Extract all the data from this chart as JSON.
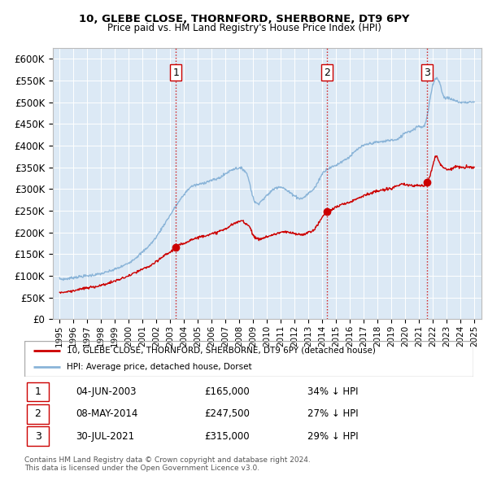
{
  "title1": "10, GLEBE CLOSE, THORNFORD, SHERBORNE, DT9 6PY",
  "title2": "Price paid vs. HM Land Registry's House Price Index (HPI)",
  "bg_color": "#dce9f5",
  "hpi_color": "#8ab4d8",
  "price_color": "#cc0000",
  "transactions": [
    {
      "num": 1,
      "date": "04-JUN-2003",
      "price": 165000,
      "pct": "34% ↓ HPI",
      "x": 2003.42
    },
    {
      "num": 2,
      "date": "08-MAY-2014",
      "price": 247500,
      "pct": "27% ↓ HPI",
      "x": 2014.36
    },
    {
      "num": 3,
      "date": "30-JUL-2021",
      "price": 315000,
      "pct": "29% ↓ HPI",
      "x": 2021.58
    }
  ],
  "legend_line1": "10, GLEBE CLOSE, THORNFORD, SHERBORNE, DT9 6PY (detached house)",
  "legend_line2": "HPI: Average price, detached house, Dorset",
  "footnote1": "Contains HM Land Registry data © Crown copyright and database right 2024.",
  "footnote2": "This data is licensed under the Open Government Licence v3.0.",
  "ylim": [
    0,
    625000
  ],
  "yticks": [
    0,
    50000,
    100000,
    150000,
    200000,
    250000,
    300000,
    350000,
    400000,
    450000,
    500000,
    550000,
    600000
  ],
  "xlim": [
    1994.5,
    2025.5
  ],
  "xticks": [
    1995,
    1996,
    1997,
    1998,
    1999,
    2000,
    2001,
    2002,
    2003,
    2004,
    2005,
    2006,
    2007,
    2008,
    2009,
    2010,
    2011,
    2012,
    2013,
    2014,
    2015,
    2016,
    2017,
    2018,
    2019,
    2020,
    2021,
    2022,
    2023,
    2024,
    2025
  ]
}
